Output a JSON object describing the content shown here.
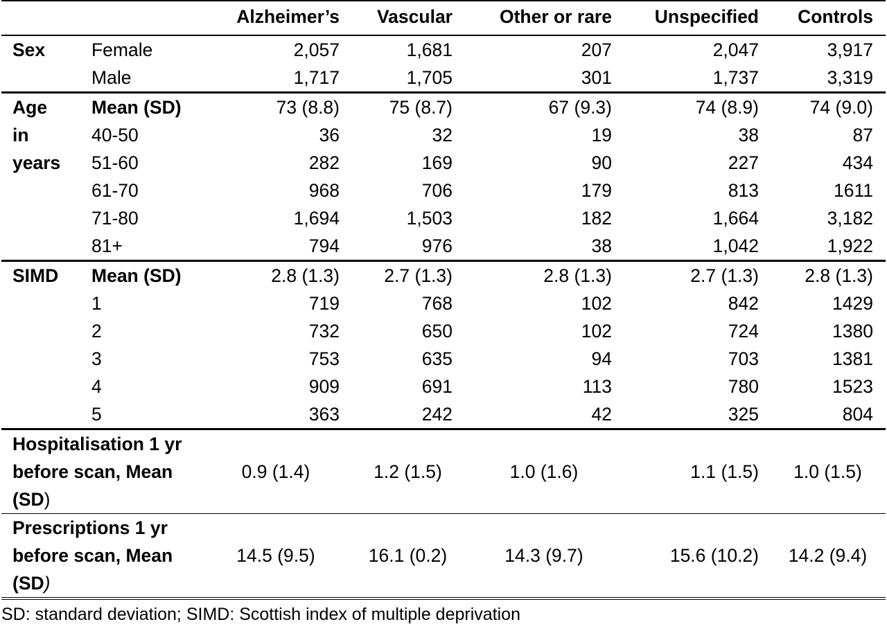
{
  "columns": [
    "",
    "",
    "Alzheimer’s",
    "Vascular",
    "Other or rare",
    "Unspecified",
    "Controls"
  ],
  "sex": {
    "label": "Sex",
    "rows": [
      {
        "label": "Female",
        "values": [
          "2,057",
          "1,681",
          "207",
          "2,047",
          "3,917"
        ]
      },
      {
        "label": "Male",
        "values": [
          "1,717",
          "1,705",
          "301",
          "1,737",
          "3,319"
        ]
      }
    ]
  },
  "age": {
    "label_lines": [
      "Age",
      "in",
      "years"
    ],
    "rows": [
      {
        "label": "Mean (SD)",
        "values": [
          "73 (8.8)",
          "75 (8.7)",
          "67 (9.3)",
          "74 (8.9)",
          "74 (9.0)"
        ]
      },
      {
        "label": "40-50",
        "values": [
          "36",
          "32",
          "19",
          "38",
          "87"
        ]
      },
      {
        "label": "51-60",
        "values": [
          "282",
          "169",
          "90",
          "227",
          "434"
        ]
      },
      {
        "label": "61-70",
        "values": [
          "968",
          "706",
          "179",
          "813",
          "1611"
        ]
      },
      {
        "label": "71-80",
        "values": [
          "1,694",
          "1,503",
          "182",
          "1,664",
          "3,182"
        ]
      },
      {
        "label": "81+",
        "values": [
          "794",
          "976",
          "38",
          "1,042",
          "1,922"
        ]
      }
    ]
  },
  "simd": {
    "label": "SIMD",
    "rows": [
      {
        "label": "Mean (SD)",
        "values": [
          "2.8 (1.3)",
          "2.7 (1.3)",
          "2.8 (1.3)",
          "2.7 (1.3)",
          "2.8 (1.3)"
        ]
      },
      {
        "label": "1",
        "values": [
          "719",
          "768",
          "102",
          "842",
          "1429"
        ]
      },
      {
        "label": "2",
        "values": [
          "732",
          "650",
          "102",
          "724",
          "1380"
        ]
      },
      {
        "label": "3",
        "values": [
          "753",
          "635",
          "94",
          "703",
          "1381"
        ]
      },
      {
        "label": "4",
        "values": [
          "909",
          "691",
          "113",
          "780",
          "1523"
        ]
      },
      {
        "label": "5",
        "values": [
          "363",
          "242",
          "42",
          "325",
          "804"
        ]
      }
    ]
  },
  "hospitalisation": {
    "label_line1": "Hospitalisation 1 yr",
    "label_line2_a": "before scan, Mean (",
    "label_line2_b": "SD",
    "label_line2_c": ")",
    "values": [
      "0.9 (1.4)",
      "1.2 (1.5)",
      "1.0 (1.6)",
      "1.1 (1.5)",
      "1.0 (1.5)"
    ]
  },
  "prescriptions": {
    "label_line1": "Prescriptions 1 yr",
    "label_line2_a": "before scan, Mean (",
    "label_line2_b": "SD",
    "label_line2_c": ")",
    "values": [
      "14.5 (9.5)",
      "16.1 (0.2)",
      "14.3 (9.7)",
      "15.6 (10.2)",
      "14.2 (9.4)"
    ]
  },
  "footnote": "SD: standard deviation; SIMD: Scottish index of multiple deprivation"
}
